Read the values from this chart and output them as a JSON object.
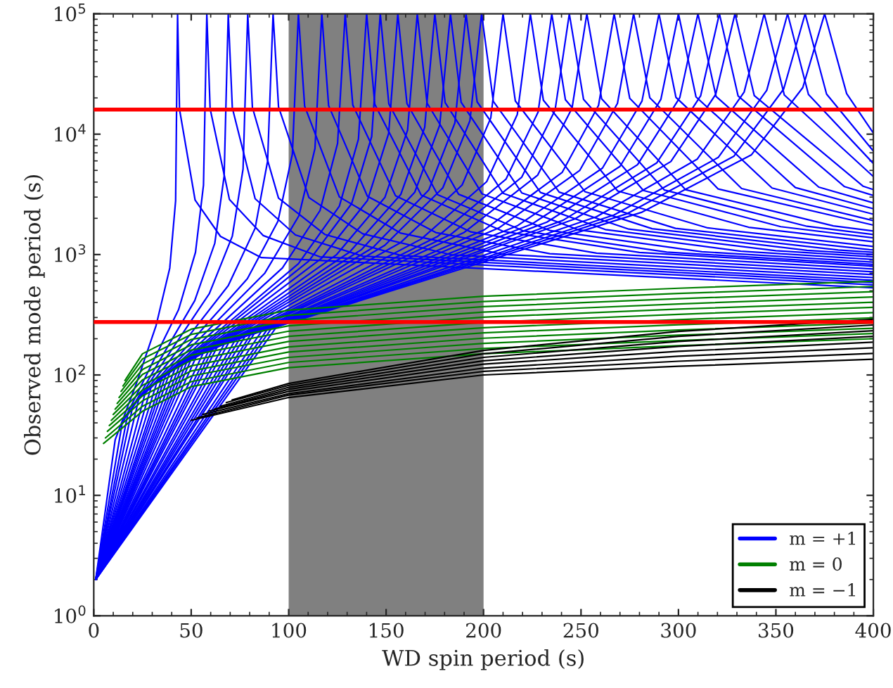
{
  "chart_data": {
    "type": "line",
    "xlabel": "WD spin period (s)",
    "ylabel": "Observed mode period (s)",
    "log": "y",
    "grid": false,
    "legend": "bottom right",
    "xlim": [
      0,
      400
    ],
    "xticks": [
      0,
      50,
      100,
      150,
      200,
      250,
      300,
      350,
      400
    ],
    "ylim": [
      1,
      100000
    ],
    "yticks": [
      {
        "value": 1,
        "label": "10$^{0}$"
      },
      {
        "value": 10,
        "label": "10$^{1}$"
      },
      {
        "value": 100,
        "label": "10$^{2}$"
      },
      {
        "value": 1000,
        "label": "10$^{3}$"
      },
      {
        "value": 10000,
        "label": "10$^{4}$"
      },
      {
        "value": 100000,
        "label": "10$^{5}$"
      }
    ],
    "bands": [
      {
        "axis": "x",
        "from": 100,
        "to": 200,
        "color": "#808080"
      }
    ],
    "ref_lines": [
      {
        "axis": "y",
        "value": 16000,
        "color": "#ff0000"
      },
      {
        "axis": "y",
        "value": 275,
        "color": "#ff0000"
      }
    ],
    "series": [
      {
        "name": "m = +1",
        "color": "#0000ff",
        "x": [
          1,
          11,
          22,
          32,
          39,
          42,
          43,
          44,
          52,
          65,
          86,
          400
        ],
        "values": [
          2,
          29,
          86,
          258,
          774,
          2795,
          100000,
          16050,
          2832,
          1416,
          944,
          529
        ]
      },
      {
        "color": "#0000ff",
        "x": [
          1,
          14.5,
          29,
          43.5,
          52.2,
          56.3,
          58,
          59.7,
          69.6,
          87,
          116,
          400
        ],
        "values": [
          2,
          39,
          116,
          348,
          1044,
          3770,
          100000,
          16290,
          2874,
          1437,
          958,
          560
        ]
      },
      {
        "color": "#0000ff",
        "x": [
          1,
          17.3,
          34.5,
          51.8,
          62.1,
          66.9,
          69,
          71.1,
          82.8,
          103.5,
          138,
          400
        ],
        "values": [
          2,
          46,
          138,
          414,
          1242,
          4485,
          100000,
          16490,
          2910,
          1455,
          970,
          586
        ]
      },
      {
        "color": "#0000ff",
        "x": [
          1,
          19.8,
          39.5,
          59.3,
          71.1,
          76.6,
          79,
          81.4,
          94.8,
          118.5,
          158,
          400
        ],
        "values": [
          2,
          53,
          158,
          474,
          1422,
          5135,
          100000,
          16660,
          2940,
          1470,
          980,
          611
        ]
      },
      {
        "color": "#0000ff",
        "x": [
          1,
          23,
          46,
          69,
          82.8,
          89.2,
          92,
          94.8,
          110.4,
          138,
          184,
          400
        ],
        "values": [
          2,
          62,
          184,
          552,
          1656,
          5980,
          100000,
          16860,
          2976,
          1488,
          992,
          644
        ]
      },
      {
        "color": "#0000ff",
        "x": [
          1,
          26.3,
          52.5,
          78.8,
          94.5,
          101.9,
          105,
          108.2,
          126,
          157.5,
          210,
          400
        ],
        "values": [
          2,
          70,
          210,
          630,
          1890,
          6825,
          100000,
          17070,
          3012,
          1506,
          1004,
          681
        ]
      },
      {
        "color": "#0000ff",
        "x": [
          1,
          29.3,
          58.5,
          87.8,
          105.3,
          113.5,
          117,
          120.5,
          140.4,
          175.5,
          234,
          400
        ],
        "values": [
          2,
          78,
          234,
          702,
          2106,
          7605,
          100000,
          17270,
          3048,
          1524,
          1016,
          718
        ]
      },
      {
        "color": "#0000ff",
        "x": [
          1,
          32.3,
          64.5,
          96.8,
          116.1,
          125.1,
          129,
          132.9,
          154.8,
          193.5,
          258,
          400
        ],
        "values": [
          2,
          86,
          258,
          774,
          2322,
          8385,
          100000,
          17480,
          3084,
          1542,
          1028,
          759
        ]
      },
      {
        "color": "#0000ff",
        "x": [
          1,
          35,
          70,
          105,
          126,
          135.8,
          140,
          144.2,
          168,
          210,
          280,
          400
        ],
        "values": [
          2,
          94,
          280,
          840,
          2520,
          9100,
          100000,
          17680,
          3120,
          1560,
          1040,
          800
        ]
      },
      {
        "color": "#0000ff",
        "x": [
          1,
          36.8,
          73.5,
          110.3,
          132.3,
          142.6,
          147,
          151.4,
          176.4,
          220.5,
          294,
          400
        ],
        "values": [
          2,
          98,
          294,
          882,
          2646,
          9555,
          100000,
          17820,
          3144,
          1572,
          1048,
          828
        ]
      },
      {
        "color": "#0000ff",
        "x": [
          1,
          39,
          78,
          117,
          140.4,
          151.3,
          156,
          160.7,
          187.2,
          234,
          312,
          400
        ],
        "values": [
          2,
          105,
          312,
          936,
          2808,
          10140,
          100000,
          17950,
          3168,
          1584,
          1056,
          866
        ]
      },
      {
        "color": "#0000ff",
        "x": [
          1,
          41.5,
          83,
          124.5,
          149.4,
          161,
          166,
          171,
          199.2,
          249,
          332,
          400
        ],
        "values": [
          2,
          111,
          332,
          996,
          2988,
          10790,
          100000,
          18120,
          3198,
          1599,
          1066,
          911
        ]
      },
      {
        "color": "#0000ff",
        "x": [
          1,
          43.8,
          87.5,
          131.3,
          157.5,
          169.8,
          175,
          180.3,
          210,
          262.5,
          350,
          400
        ],
        "values": [
          2,
          117,
          350,
          1050,
          3150,
          11375,
          100000,
          18290,
          3228,
          1614,
          1076,
          956
        ]
      },
      {
        "color": "#0000ff",
        "x": [
          1,
          45.8,
          91.5,
          137.3,
          164.7,
          177.5,
          183,
          188.5,
          219.6,
          274.5,
          366,
          400
        ],
        "values": [
          2,
          123,
          366,
          1098,
          3294,
          11895,
          100000,
          18430,
          3252,
          1626,
          1084,
          999
        ]
      },
      {
        "color": "#0000ff",
        "x": [
          1,
          47.8,
          95.5,
          143.3,
          171.9,
          185.3,
          191,
          196.7,
          229.2,
          286.5,
          382,
          400
        ],
        "values": [
          2,
          128,
          382,
          1146,
          3438,
          12415,
          100000,
          18560,
          3276,
          1638,
          1092,
          1045
        ]
      },
      {
        "color": "#0000ff",
        "x": [
          1,
          49.8,
          99.5,
          149.3,
          179.1,
          193,
          199,
          205,
          238.8,
          298.5,
          398,
          400
        ],
        "values": [
          2,
          133,
          398,
          1194,
          3582,
          12935,
          100000,
          18700,
          3300,
          1650,
          1100,
          1095
        ]
      },
      {
        "color": "#0000ff",
        "x": [
          1,
          52.5,
          105,
          157.5,
          189,
          203.7,
          210,
          216.3,
          252,
          315,
          400
        ],
        "values": [
          2,
          141,
          420,
          1260,
          3780,
          13650,
          100000,
          18870,
          3330,
          1665,
          1168
        ]
      },
      {
        "color": "#0000ff",
        "x": [
          1,
          56,
          112,
          168,
          201.6,
          217.3,
          224,
          230.7,
          268.8,
          336,
          400
        ],
        "values": [
          2,
          150,
          448,
          1344,
          4032,
          14560,
          100000,
          19110,
          3372,
          1686,
          1277
        ]
      },
      {
        "color": "#0000ff",
        "x": [
          1,
          58.8,
          117.5,
          176.3,
          211.5,
          228,
          235,
          242,
          282,
          352.5,
          400
        ],
        "values": [
          2,
          157,
          470,
          1410,
          4230,
          15275,
          100000,
          19310,
          3408,
          1704,
          1377
        ]
      },
      {
        "color": "#0000ff",
        "x": [
          1,
          61,
          122,
          183,
          219.6,
          236.7,
          244,
          251.3,
          292.8,
          366,
          400
        ],
        "values": [
          2,
          163,
          488,
          1464,
          4392,
          15860,
          100000,
          19450,
          3432,
          1716,
          1467
        ]
      },
      {
        "color": "#0000ff",
        "x": [
          1,
          63.3,
          126.5,
          189.8,
          227.7,
          245.4,
          253,
          260.6,
          303.6,
          379.5,
          400
        ],
        "values": [
          2,
          170,
          506,
          1518,
          4554,
          16445,
          100000,
          19620,
          3462,
          1731,
          1570
        ]
      },
      {
        "color": "#0000ff",
        "x": [
          1,
          66.8,
          133.5,
          200.3,
          240.3,
          259,
          267,
          275,
          320.4,
          400
        ],
        "values": [
          2,
          179,
          534,
          1602,
          4806,
          17355,
          100000,
          19860,
          3504,
          1756
        ]
      },
      {
        "color": "#0000ff",
        "x": [
          1,
          69.3,
          138.5,
          207.8,
          249.3,
          268.7,
          277,
          285.3,
          332.4,
          400
        ],
        "values": [
          2,
          186,
          554,
          1662,
          4986,
          18005,
          100000,
          20030,
          3534,
          1915
        ]
      },
      {
        "color": "#0000ff",
        "x": [
          1,
          72.5,
          145,
          217.5,
          261,
          281.3,
          290,
          298.7,
          348,
          400
        ],
        "values": [
          2,
          194,
          580,
          1740,
          5220,
          18850,
          100000,
          20230,
          3570,
          2164
        ]
      },
      {
        "color": "#0000ff",
        "x": [
          1,
          75,
          150,
          225,
          270,
          291,
          300,
          309,
          360,
          400
        ],
        "values": [
          2,
          201,
          600,
          1800,
          5400,
          19500,
          100000,
          20400,
          3600,
          2400
        ]
      },
      {
        "color": "#0000ff",
        "x": [
          1,
          77.5,
          155,
          232.5,
          279,
          300.7,
          310,
          319.3,
          372,
          400
        ],
        "values": [
          2,
          208,
          620,
          1860,
          5580,
          20150,
          100000,
          20570,
          3630,
          2689
        ]
      },
      {
        "color": "#0000ff",
        "x": [
          1,
          80.3,
          160.5,
          240.8,
          288.9,
          311.4,
          321,
          330.6,
          385.2,
          400
        ],
        "values": [
          2,
          215,
          642,
          1926,
          5778,
          20865,
          100000,
          20770,
          3666,
          3094
        ]
      },
      {
        "color": "#0000ff",
        "x": [
          1,
          82.3,
          164.5,
          246.8,
          296.1,
          319.1,
          329,
          338.9,
          394.8,
          400
        ],
        "values": [
          2,
          220,
          658,
          1974,
          5922,
          21385,
          100000,
          20910,
          3690,
          3465
        ]
      },
      {
        "color": "#0000ff",
        "x": [
          1,
          86,
          172,
          258,
          309.6,
          333.7,
          344,
          354.3,
          400
        ],
        "values": [
          2,
          230,
          688,
          2064,
          6192,
          22360,
          100000,
          21150,
          4443
        ]
      },
      {
        "color": "#0000ff",
        "x": [
          1,
          89,
          178,
          267,
          320.4,
          345.3,
          356,
          366.7,
          400
        ],
        "values": [
          2,
          239,
          712,
          2136,
          6408,
          23140,
          100000,
          21350,
          5709
        ]
      },
      {
        "color": "#0000ff",
        "x": [
          1,
          91.3,
          182.5,
          273.8,
          328.5,
          354,
          365,
          376,
          400
        ],
        "values": [
          2,
          245,
          730,
          2190,
          6570,
          23725,
          100000,
          21520,
          7234
        ]
      },
      {
        "color": "#0000ff",
        "x": [
          1,
          93.8,
          187.5,
          281.3,
          337.5,
          363.8,
          375,
          386.3,
          400
        ],
        "values": [
          2,
          251,
          750,
          2250,
          6750,
          24375,
          100000,
          21690,
          10208
        ]
      },
      {
        "name": "m = 0",
        "color": "#008000",
        "x": [
          5,
          25,
          50,
          100,
          200,
          300,
          400
        ],
        "values": [
          27,
          50,
          80,
          115,
          150,
          175,
          200
        ]
      },
      {
        "color": "#008000",
        "x": [
          6,
          25,
          50,
          100,
          200,
          300,
          400
        ],
        "values": [
          30,
          55,
          88,
          127,
          166,
          193,
          221
        ]
      },
      {
        "color": "#008000",
        "x": [
          7,
          25,
          50,
          100,
          200,
          300,
          400
        ],
        "values": [
          34,
          61,
          98,
          140,
          183,
          214,
          244
        ]
      },
      {
        "color": "#008000",
        "x": [
          8,
          25,
          50,
          100,
          200,
          300,
          400
        ],
        "values": [
          38,
          67,
          108,
          155,
          202,
          236,
          270
        ]
      },
      {
        "color": "#008000",
        "x": [
          9,
          25,
          50,
          100,
          200,
          300,
          400
        ],
        "values": [
          42,
          75,
          119,
          171,
          224,
          261,
          298
        ]
      },
      {
        "color": "#008000",
        "x": [
          10,
          25,
          50,
          100,
          200,
          300,
          400
        ],
        "values": [
          47,
          82,
          132,
          190,
          247,
          288,
          330
        ]
      },
      {
        "color": "#008000",
        "x": [
          11,
          25,
          50,
          100,
          200,
          300,
          400
        ],
        "values": [
          52,
          91,
          146,
          209,
          273,
          319,
          364
        ]
      },
      {
        "color": "#008000",
        "x": [
          12,
          25,
          50,
          100,
          200,
          300,
          400
        ],
        "values": [
          58,
          101,
          161,
          231,
          302,
          352,
          402
        ]
      },
      {
        "color": "#008000",
        "x": [
          13,
          25,
          50,
          100,
          200,
          300,
          400
        ],
        "values": [
          65,
          111,
          178,
          256,
          333,
          389,
          445
        ]
      },
      {
        "color": "#008000",
        "x": [
          14,
          25,
          50,
          100,
          200,
          300,
          400
        ],
        "values": [
          73,
          123,
          197,
          283,
          369,
          430,
          491
        ]
      },
      {
        "color": "#008000",
        "x": [
          15,
          25,
          50,
          100,
          200,
          300,
          400
        ],
        "values": [
          81,
          136,
          217,
          312,
          407,
          475,
          543
        ]
      },
      {
        "color": "#008000",
        "x": [
          16,
          25,
          50,
          100,
          200,
          300,
          400
        ],
        "values": [
          90,
          150,
          240,
          345,
          450,
          525,
          600
        ]
      },
      {
        "name": "m = −1",
        "color": "#000000",
        "x": [
          50,
          100,
          200,
          300,
          400
        ],
        "values": [
          42,
          65,
          100,
          118,
          135
        ]
      },
      {
        "color": "#000000",
        "x": [
          53,
          100,
          200,
          300,
          400
        ],
        "values": [
          44,
          68,
          107,
          130,
          151
        ]
      },
      {
        "color": "#000000",
        "x": [
          56,
          100,
          200,
          300,
          400
        ],
        "values": [
          47,
          70,
          114,
          143,
          168
        ]
      },
      {
        "color": "#000000",
        "x": [
          59,
          100,
          200,
          300,
          400
        ],
        "values": [
          50,
          73,
          123,
          157,
          187
        ]
      },
      {
        "color": "#000000",
        "x": [
          62,
          100,
          200,
          300,
          400
        ],
        "values": [
          52,
          76,
          131,
          173,
          209
        ]
      },
      {
        "color": "#000000",
        "x": [
          65,
          100,
          200,
          300,
          400
        ],
        "values": [
          55,
          79,
          140,
          190,
          233
        ]
      },
      {
        "color": "#000000",
        "x": [
          68,
          100,
          200,
          300,
          400
        ],
        "values": [
          59,
          82,
          150,
          209,
          260
        ]
      },
      {
        "color": "#000000",
        "x": [
          71,
          100,
          200,
          300,
          400
        ],
        "values": [
          62,
          85,
          160,
          230,
          290
        ]
      }
    ]
  }
}
